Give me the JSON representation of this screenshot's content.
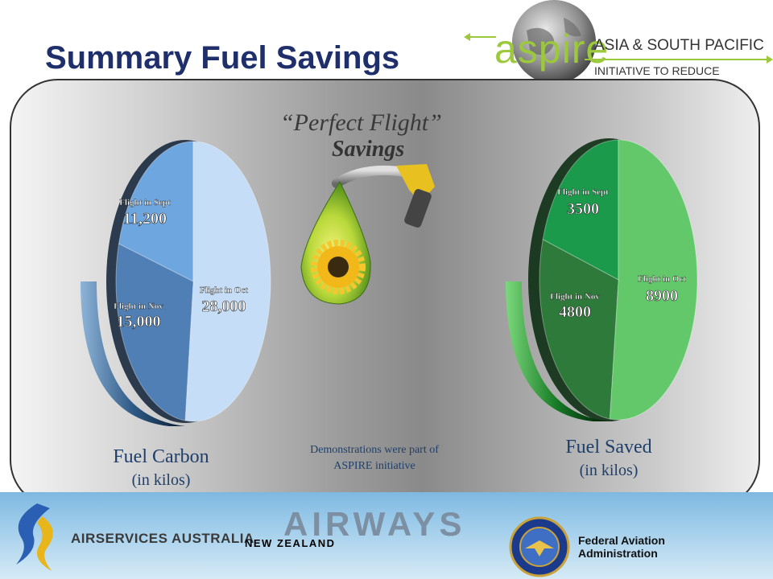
{
  "slide": {
    "title": "Summary Fuel Savings"
  },
  "header": {
    "aspire_word": "aspire",
    "line1": "ASIA & SOUTH PACIFIC",
    "line2": "INITIATIVE TO REDUCE EMISSIONS"
  },
  "center": {
    "quote": "“Perfect Flight”",
    "savings": "Savings",
    "demo_line1": "Demonstrations were part of",
    "demo_line2": "ASPIRE initiative"
  },
  "footer": {
    "airservices": "AIRSERVICES AUSTRALIA",
    "airways": "AIRWAYS",
    "new_zealand": "NEW ZEALAND",
    "faa_line1": "Federal Aviation",
    "faa_line2": "Administration"
  },
  "colors": {
    "title": "#1f2f6b",
    "carbon_sept": "#6ea6e0",
    "carbon_nov": "#4f7fb4",
    "carbon_oct": "#c5ddf7",
    "saved_sept": "#1a9a4a",
    "saved_nov": "#2e7a3a",
    "saved_oct": "#62c86a"
  },
  "chart_data": [
    {
      "type": "pie",
      "title": "Fuel Carbon",
      "subtitle": "(in kilos)",
      "slices": [
        {
          "label": "Flight in Sept",
          "value": 11200,
          "display": "11,200"
        },
        {
          "label": "Flight in Oct",
          "value": 28000,
          "display": "28,000"
        },
        {
          "label": "Flight in Nov",
          "value": 15000,
          "display": "15,000"
        }
      ]
    },
    {
      "type": "pie",
      "title": "Fuel Saved",
      "subtitle": "(in kilos)",
      "slices": [
        {
          "label": "Flight in Sept",
          "value": 3500,
          "display": "3500"
        },
        {
          "label": "Flight in Oct",
          "value": 8900,
          "display": "8900"
        },
        {
          "label": "Flight in Nov",
          "value": 4800,
          "display": "4800"
        }
      ]
    }
  ]
}
